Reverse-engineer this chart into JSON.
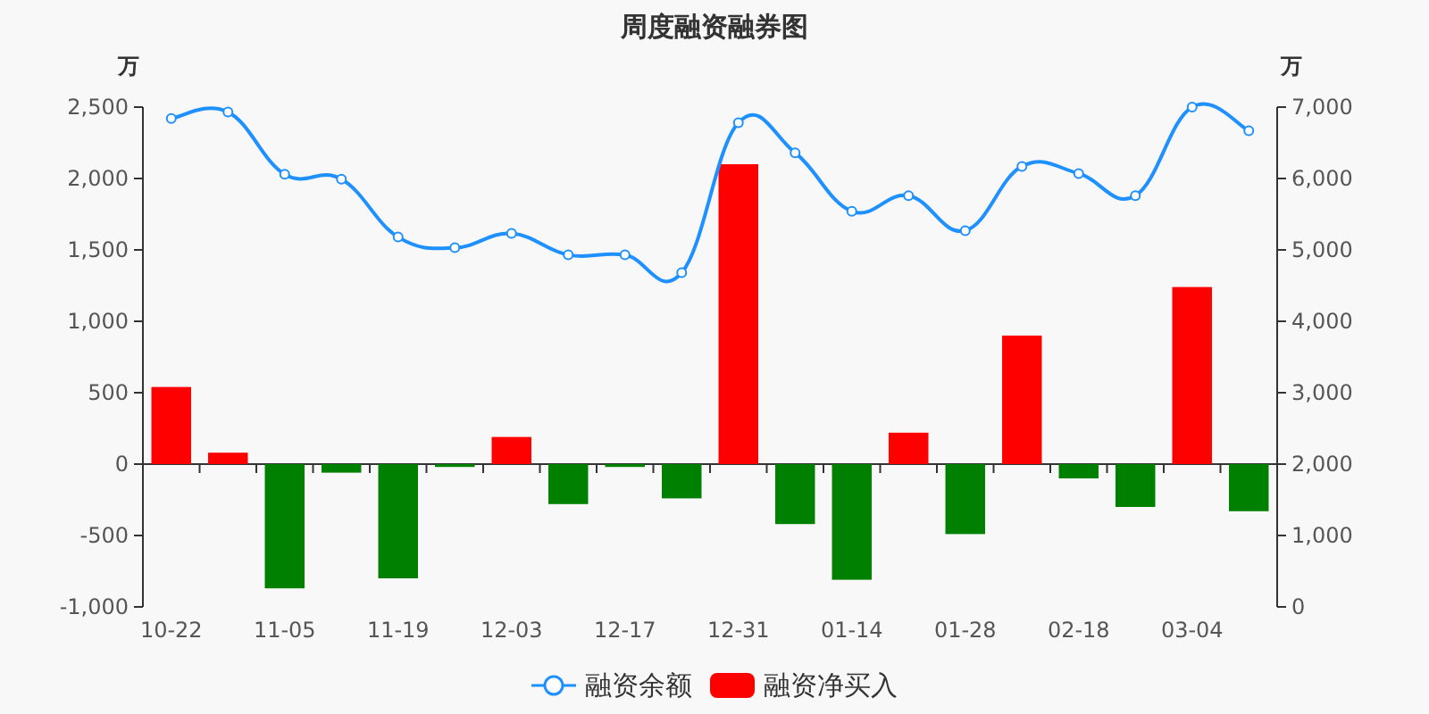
{
  "chart_data": {
    "type": "bar",
    "title": "周度融资融券图",
    "ylabel": "万",
    "y2label": "万",
    "categories": [
      "10-22",
      null,
      "11-05",
      null,
      "11-19",
      null,
      "12-03",
      null,
      "12-17",
      null,
      "12-31",
      null,
      "01-14",
      null,
      "01-28",
      null,
      "02-18",
      null,
      "03-04",
      null
    ],
    "series": [
      {
        "name": "融资余额",
        "type": "line",
        "axis": "y2",
        "color": "#1e90ff",
        "marker": "circle",
        "values": [
          6840,
          6930,
          6060,
          5990,
          5180,
          5030,
          5230,
          4930,
          4930,
          4680,
          6780,
          6360,
          5540,
          5760,
          5270,
          6170,
          6070,
          5760,
          7000,
          6670
        ]
      },
      {
        "name": "融资净买入",
        "color": "#ff0000",
        "colors": [
          "#ff0000",
          "#ff0000",
          "#008000",
          "#008000",
          "#008000",
          "#008000",
          "#ff0000",
          "#008000",
          "#008000",
          "#008000",
          "#ff0000",
          "#008000",
          "#008000",
          "#ff0000",
          "#008000",
          "#ff0000",
          "#008000",
          "#008000",
          "#ff0000",
          "#008000"
        ],
        "values": [
          540,
          80,
          -870,
          -60,
          -800,
          -20,
          190,
          -280,
          -20,
          -240,
          2100,
          -420,
          -810,
          220,
          -490,
          900,
          -100,
          -300,
          1240,
          -330
        ]
      }
    ],
    "ylim": [
      -1000,
      2500
    ],
    "yticks": [
      {
        "value": -1000,
        "label": "-1,000"
      },
      -500,
      0,
      500,
      {
        "value": 1000,
        "label": "1,000"
      },
      {
        "value": 1500,
        "label": "1,500"
      },
      {
        "value": 2000,
        "label": "2,000"
      },
      {
        "value": 2500,
        "label": "2,500"
      }
    ],
    "y2lim": [
      0,
      7000
    ],
    "y2ticks": [
      0,
      {
        "value": 1000,
        "label": "1,000"
      },
      {
        "value": 2000,
        "label": "2,000"
      },
      {
        "value": 3000,
        "label": "3,000"
      },
      {
        "value": 4000,
        "label": "4,000"
      },
      {
        "value": 5000,
        "label": "5,000"
      },
      {
        "value": 6000,
        "label": "6,000"
      },
      {
        "value": 7000,
        "label": "7,000"
      }
    ],
    "legend": "bottom"
  }
}
